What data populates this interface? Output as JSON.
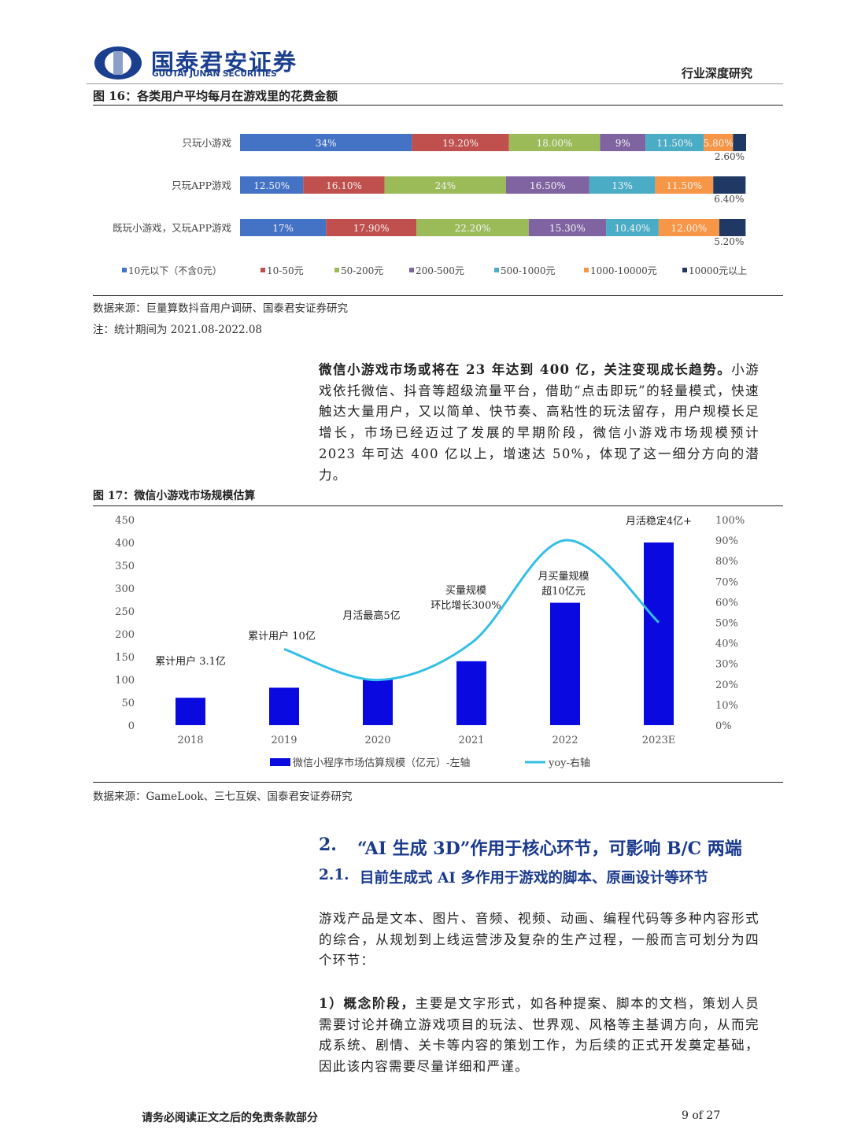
{
  "header": {
    "company": "国泰君安证券",
    "company_en": "GUOTAI JUNAN SECURITIES",
    "report_type": "行业深度研究"
  },
  "figure16": {
    "title": "图 16：各类用户平均每月在游戏里的花费金额",
    "source": "数据来源：巨量算数抖音用户调研、国泰君安证券研究",
    "note": "注：统计期间为 2021.08-2022.08"
  },
  "figure17": {
    "title": "图 17：微信小游戏市场规模估算",
    "source": "数据来源：GameLook、三七互娱、国泰君安证券研究"
  },
  "chart_data": [
    {
      "type": "stacked-hbar",
      "categories": [
        "只玩小游戏",
        "只玩APP游戏",
        "既玩小游戏，又玩APP游戏"
      ],
      "series": [
        {
          "name": "10元以下（不含0元）",
          "color": "#4472c4",
          "values": [
            34,
            12.5,
            17
          ],
          "value_labels": [
            "34%",
            "12.50%",
            "17%"
          ]
        },
        {
          "name": "10-50元",
          "color": "#c0504d",
          "values": [
            19.2,
            16.1,
            17.9
          ],
          "value_labels": [
            "19.20%",
            "16.10%",
            "17.90%"
          ]
        },
        {
          "name": "50-200元",
          "color": "#9bbb59",
          "values": [
            18,
            24,
            22.2
          ],
          "value_labels": [
            "18.00%",
            "24%",
            "22.20%"
          ]
        },
        {
          "name": "200-500元",
          "color": "#8064a2",
          "values": [
            9,
            16.5,
            15.3
          ],
          "value_labels": [
            "9%",
            "16.50%",
            "15.30%"
          ]
        },
        {
          "name": "500-1000元",
          "color": "#4bacc6",
          "values": [
            11.5,
            13,
            10.4
          ],
          "value_labels": [
            "11.50%",
            "13%",
            "10.40%"
          ]
        },
        {
          "name": "1000-10000元",
          "color": "#f79646",
          "values": [
            5.8,
            11.5,
            12
          ],
          "value_labels": [
            "5.80%",
            "11.50%",
            "12.00%"
          ]
        },
        {
          "name": "10000元以上",
          "color": "#1f3864",
          "values": [
            2.6,
            6.4,
            5.2
          ],
          "value_labels": [
            "2.60%",
            "6.40%",
            "5.20%"
          ]
        }
      ],
      "legend": "bottom"
    },
    {
      "type": "bar-line",
      "categories": [
        "2018",
        "2019",
        "2020",
        "2021",
        "2022",
        "2023E"
      ],
      "series": [
        {
          "name": "微信小程序市场估算规模（亿元）-左轴",
          "color": "#0a0ae0",
          "values": [
            60,
            82,
            100,
            140,
            268,
            400
          ]
        },
        {
          "name": "yoy-右轴",
          "color": "#33bfe6",
          "axis": "y2",
          "values": [
            null,
            37,
            22,
            40,
            90,
            50
          ]
        }
      ],
      "ylim": [
        0,
        450
      ],
      "yticks": [
        0,
        50,
        100,
        150,
        200,
        250,
        300,
        350,
        400,
        450
      ],
      "y2lim": [
        0,
        100
      ],
      "y2ticks": [
        {
          "value": 0,
          "label": "0%"
        },
        {
          "value": 10,
          "label": "10%"
        },
        {
          "value": 20,
          "label": "20%"
        },
        {
          "value": 30,
          "label": "30%"
        },
        {
          "value": 40,
          "label": "40%"
        },
        {
          "value": 50,
          "label": "50%"
        },
        {
          "value": 60,
          "label": "60%"
        },
        {
          "value": 70,
          "label": "70%"
        },
        {
          "value": 80,
          "label": "80%"
        },
        {
          "value": 90,
          "label": "90%"
        },
        {
          "value": 100,
          "label": "100%"
        }
      ],
      "annotations": [
        [
          "累计用户 3.1亿"
        ],
        [
          "累计用户 10亿"
        ],
        [
          "月活最高5亿"
        ],
        [
          "买量规模",
          "环比增长300%"
        ],
        [
          "月买量规模",
          "超10亿元"
        ],
        [
          "月活稳定4亿+"
        ]
      ],
      "legend": "bottom"
    }
  ],
  "paragraph1": {
    "bold": "微信小游戏市场或将在 23 年达到 400 亿，关注变现成长趋势。",
    "text": "小游戏依托微信、抖音等超级流量平台，借助“点击即玩”的轻量模式，快速触达大量用户，又以简单、快节奏、高粘性的玩法留存，用户规模长足增长，市场已经迈过了发展的早期阶段，微信小游戏市场规模预计 2023 年可达 400 亿以上，增速达 50%，体现了这一细分方向的潜力。"
  },
  "section": {
    "number": "2.",
    "title": "“AI 生成 3D”作用于核心环节，可影响 B/C 两端"
  },
  "subsection": {
    "number": "2.1.",
    "title": "目前生成式 AI 多作用于游戏的脚本、原画设计等环节"
  },
  "paragraph2": "游戏产品是文本、图片、音频、视频、动画、编程代码等多种内容形式的综合，从规划到上线运营涉及复杂的生产过程，一般而言可划分为四个环节：",
  "paragraph3": {
    "bold": "1）概念阶段，",
    "text": "主要是文字形式，如各种提案、脚本的文档，策划人员需要讨论并确立游戏项目的玩法、世界观、风格等主基调方向，从而完成系统、剧情、关卡等内容的策划工作，为后续的正式开发奠定基础，因此该内容需要尽量详细和严谨。"
  },
  "footer": {
    "disclaimer": "请务必阅读正文之后的免责条款部分",
    "page": "9 of 27"
  }
}
